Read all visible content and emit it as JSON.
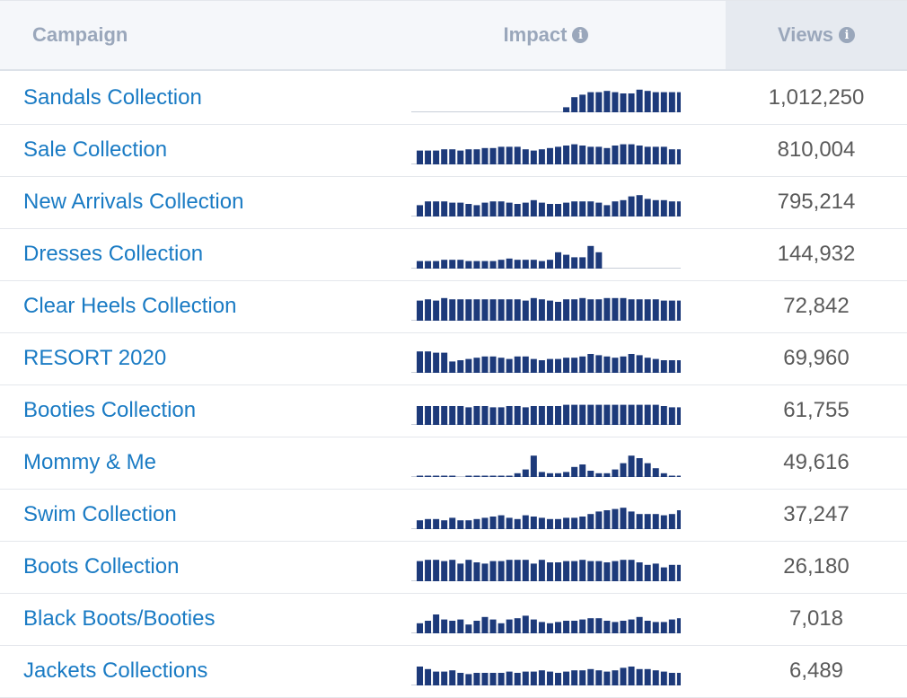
{
  "header": {
    "campaign_label": "Campaign",
    "impact_label": "Impact",
    "views_label": "Views",
    "info_glyph": "i"
  },
  "colors": {
    "bar": "#1d3a7a",
    "baseline": "#c8ced8",
    "link": "#1a7bc4"
  },
  "rows": [
    {
      "name": "Sandals Collection",
      "views": "1,012,250",
      "impact": [
        0,
        0,
        0,
        0,
        0,
        0,
        0,
        0,
        0,
        0,
        0,
        0,
        0,
        0,
        0,
        0,
        0,
        0,
        0.2,
        0.6,
        0.7,
        0.8,
        0.8,
        0.85,
        0.8,
        0.75,
        0.75,
        0.9,
        0.85,
        0.8,
        0.8,
        0.8,
        0.8
      ]
    },
    {
      "name": "Sale Collection",
      "views": "810,004",
      "impact": [
        0.55,
        0.55,
        0.55,
        0.6,
        0.6,
        0.55,
        0.6,
        0.6,
        0.65,
        0.65,
        0.7,
        0.7,
        0.7,
        0.6,
        0.55,
        0.6,
        0.65,
        0.7,
        0.75,
        0.8,
        0.75,
        0.7,
        0.7,
        0.65,
        0.75,
        0.8,
        0.8,
        0.75,
        0.7,
        0.7,
        0.7,
        0.6,
        0.6
      ]
    },
    {
      "name": "New Arrivals Collection",
      "views": "795,214",
      "impact": [
        0.45,
        0.6,
        0.6,
        0.6,
        0.55,
        0.55,
        0.5,
        0.45,
        0.55,
        0.6,
        0.6,
        0.55,
        0.5,
        0.55,
        0.65,
        0.55,
        0.5,
        0.5,
        0.55,
        0.6,
        0.6,
        0.6,
        0.55,
        0.45,
        0.6,
        0.65,
        0.8,
        0.85,
        0.7,
        0.65,
        0.65,
        0.6,
        0.6
      ]
    },
    {
      "name": "Dresses Collection",
      "views": "144,932",
      "impact": [
        0.3,
        0.3,
        0.3,
        0.35,
        0.35,
        0.35,
        0.3,
        0.3,
        0.3,
        0.3,
        0.35,
        0.4,
        0.35,
        0.35,
        0.35,
        0.3,
        0.35,
        0.65,
        0.55,
        0.45,
        0.45,
        0.9,
        0.65,
        0,
        0,
        0,
        0,
        0,
        0,
        0,
        0,
        0,
        0
      ]
    },
    {
      "name": "Clear Heels Collection",
      "views": "72,842",
      "impact": [
        0.8,
        0.85,
        0.8,
        0.9,
        0.85,
        0.85,
        0.85,
        0.85,
        0.85,
        0.85,
        0.85,
        0.85,
        0.85,
        0.8,
        0.9,
        0.85,
        0.8,
        0.75,
        0.85,
        0.85,
        0.9,
        0.85,
        0.85,
        0.9,
        0.9,
        0.9,
        0.85,
        0.85,
        0.85,
        0.85,
        0.8,
        0.8,
        0.8
      ]
    },
    {
      "name": "RESORT 2020",
      "views": "69,960",
      "impact": [
        0.85,
        0.85,
        0.8,
        0.8,
        0.45,
        0.5,
        0.55,
        0.6,
        0.65,
        0.65,
        0.6,
        0.55,
        0.65,
        0.65,
        0.55,
        0.5,
        0.55,
        0.55,
        0.6,
        0.6,
        0.65,
        0.75,
        0.7,
        0.65,
        0.6,
        0.65,
        0.75,
        0.7,
        0.6,
        0.55,
        0.5,
        0.5,
        0.5
      ]
    },
    {
      "name": "Booties Collection",
      "views": "61,755",
      "impact": [
        0.75,
        0.75,
        0.75,
        0.75,
        0.75,
        0.75,
        0.7,
        0.75,
        0.75,
        0.7,
        0.7,
        0.75,
        0.75,
        0.7,
        0.75,
        0.75,
        0.75,
        0.75,
        0.8,
        0.8,
        0.8,
        0.8,
        0.8,
        0.8,
        0.8,
        0.8,
        0.8,
        0.8,
        0.8,
        0.8,
        0.75,
        0.7,
        0.7
      ]
    },
    {
      "name": "Mommy & Me",
      "views": "49,616",
      "impact": [
        0.05,
        0.05,
        0.05,
        0.05,
        0.05,
        0,
        0.05,
        0.05,
        0.05,
        0.05,
        0.05,
        0.05,
        0.15,
        0.3,
        0.85,
        0.2,
        0.15,
        0.15,
        0.2,
        0.4,
        0.5,
        0.25,
        0.15,
        0.15,
        0.3,
        0.55,
        0.85,
        0.75,
        0.55,
        0.35,
        0.15,
        0.05,
        0.05
      ]
    },
    {
      "name": "Swim Collection",
      "views": "37,247",
      "impact": [
        0.35,
        0.4,
        0.4,
        0.35,
        0.45,
        0.35,
        0.35,
        0.4,
        0.45,
        0.5,
        0.55,
        0.45,
        0.4,
        0.55,
        0.5,
        0.45,
        0.4,
        0.4,
        0.45,
        0.45,
        0.5,
        0.6,
        0.7,
        0.75,
        0.8,
        0.85,
        0.7,
        0.6,
        0.6,
        0.6,
        0.55,
        0.6,
        0.75
      ]
    },
    {
      "name": "Boots Collection",
      "views": "26,180",
      "impact": [
        0.8,
        0.85,
        0.85,
        0.8,
        0.85,
        0.7,
        0.85,
        0.75,
        0.7,
        0.8,
        0.8,
        0.85,
        0.85,
        0.85,
        0.7,
        0.85,
        0.75,
        0.75,
        0.8,
        0.8,
        0.85,
        0.8,
        0.8,
        0.75,
        0.8,
        0.85,
        0.85,
        0.75,
        0.65,
        0.7,
        0.55,
        0.65,
        0.65
      ]
    },
    {
      "name": "Black Boots/Booties",
      "views": "7,018",
      "impact": [
        0.4,
        0.5,
        0.75,
        0.55,
        0.5,
        0.55,
        0.35,
        0.5,
        0.65,
        0.55,
        0.4,
        0.55,
        0.6,
        0.7,
        0.55,
        0.45,
        0.4,
        0.45,
        0.5,
        0.5,
        0.55,
        0.6,
        0.6,
        0.5,
        0.45,
        0.5,
        0.55,
        0.65,
        0.5,
        0.45,
        0.45,
        0.55,
        0.6
      ]
    },
    {
      "name": "Jackets Collections",
      "views": "6,489",
      "impact": [
        0.75,
        0.65,
        0.55,
        0.55,
        0.6,
        0.5,
        0.45,
        0.5,
        0.5,
        0.5,
        0.5,
        0.55,
        0.5,
        0.55,
        0.55,
        0.6,
        0.55,
        0.5,
        0.55,
        0.6,
        0.6,
        0.65,
        0.6,
        0.55,
        0.6,
        0.7,
        0.75,
        0.65,
        0.65,
        0.6,
        0.55,
        0.5,
        0.5
      ]
    }
  ]
}
